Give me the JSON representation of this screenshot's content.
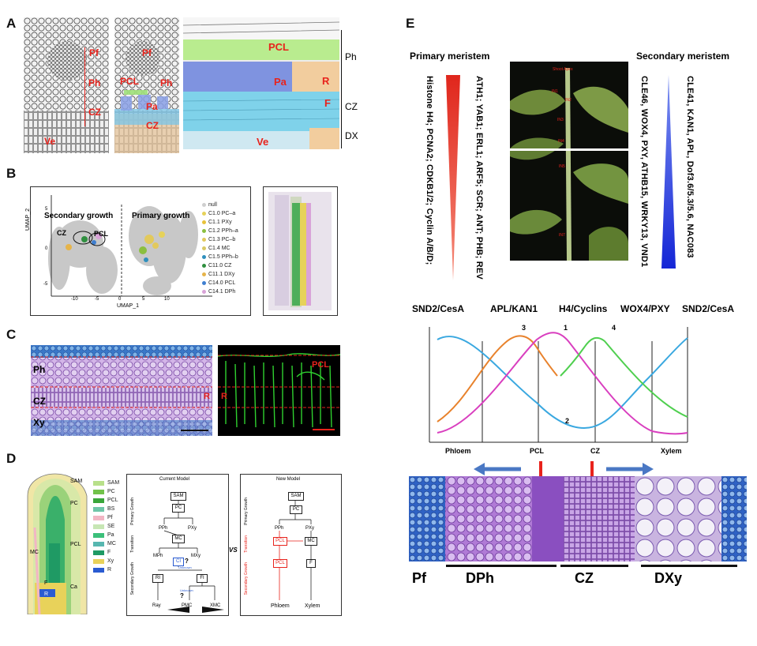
{
  "panels": {
    "A": {
      "letter": "A",
      "labels": {
        "pf": "Pf",
        "ph": "Ph",
        "cz": "CZ",
        "ve": "Ve",
        "pcl": "PCL",
        "pa": "Pa",
        "r": "R",
        "f": "F",
        "ph_side": "Ph",
        "cz_side": "CZ",
        "dx_side": "DX"
      }
    },
    "B": {
      "letter": "B",
      "secondary": "Secondary growth",
      "primary": "Primary growth",
      "cz": "CZ",
      "pcl": "PCL",
      "ylabel": "UMAP_2",
      "xlabel": "UMAP_1",
      "yticks": [
        "5",
        "0",
        "-5"
      ],
      "xticks": [
        "-10",
        "-5",
        "0",
        "5",
        "10"
      ],
      "legend": [
        {
          "name": "null",
          "color": "#cfcfcf"
        },
        {
          "name": "C1.0 PC–a",
          "color": "#e6d25a"
        },
        {
          "name": "C1.1 PXy",
          "color": "#e8c23a"
        },
        {
          "name": "C1.2 PPh–a",
          "color": "#8bbf3f"
        },
        {
          "name": "C1.3 PC–b",
          "color": "#e2c95d"
        },
        {
          "name": "C1.4 MC",
          "color": "#d9c864"
        },
        {
          "name": "C1.5 PPh–b",
          "color": "#2f8fbd"
        },
        {
          "name": "C11.0 CZ",
          "color": "#2f8f3f"
        },
        {
          "name": "C11.1 DXy",
          "color": "#e6b44a"
        },
        {
          "name": "C14.0 PCL",
          "color": "#3f7fd0"
        },
        {
          "name": "C14.1 DPh",
          "color": "#d9a3d8"
        }
      ]
    },
    "C": {
      "letter": "C",
      "ph": "Ph",
      "cz": "CZ",
      "xy": "Xy",
      "r": "R",
      "pcl": "PCL",
      "r2": "R"
    },
    "D": {
      "letter": "D",
      "sam": "SAM",
      "pc": "PC",
      "pcl": "PCL",
      "mc": "MC",
      "ca": "Ca",
      "f": "F",
      "r": "R",
      "legend": [
        {
          "name": "SAM",
          "color": "#b8e08a"
        },
        {
          "name": "PC",
          "color": "#72c24a"
        },
        {
          "name": "PCL",
          "color": "#3aa63a"
        },
        {
          "name": "BS",
          "color": "#6fc6a8"
        },
        {
          "name": "Pf",
          "color": "#f2b6c4"
        },
        {
          "name": "SE",
          "color": "#c7e6b4"
        },
        {
          "name": "Pa",
          "color": "#3cc07a"
        },
        {
          "name": "MC",
          "color": "#57b7b0"
        },
        {
          "name": "F",
          "color": "#1f9a64"
        },
        {
          "name": "Xy",
          "color": "#e8d25a"
        },
        {
          "name": "R",
          "color": "#2a5bd1"
        }
      ],
      "current": {
        "title": "Current Model",
        "sam": "SAM",
        "pc": "PC",
        "pph": "PPh",
        "pxy": "PXy",
        "mc": "MC",
        "mph": "MPh",
        "mxy": "MXy",
        "ci": "CI",
        "q1": "?",
        "unknown": "Unknown",
        "ri": "RI",
        "fi": "FI",
        "unknown2": "Unknown",
        "q2": "?",
        "ray": "Ray",
        "pmc": "PMC",
        "xmc": "XMC",
        "prim": "Primary Growth",
        "trans": "Transition",
        "sec": "Secondary Growth"
      },
      "vs": "VS",
      "new": {
        "title": "New Model",
        "sam": "SAM",
        "pc": "PC",
        "pph": "PPh",
        "pxy": "PXy",
        "pcl1": "PCL",
        "mc": "MC",
        "pcl2": "PCL",
        "f": "F",
        "phloem": "Phloem",
        "xylem": "Xylem",
        "prim": "Primary Growth",
        "trans": "Transition",
        "sec": "Secondary Growth"
      }
    },
    "E": {
      "letter": "E",
      "primary_meristem": "Primary meristem",
      "secondary_meristem": "Secondary meristem",
      "col1": "Histone H4; PCNA2; CDKB1/2; Cyclin A/B/D;",
      "col2": "ATH1; YAB1; ERL1; ARF5; SCR; ANT; PHB; REV",
      "col3": "CLE46, WOX4, PXY, ATHB15, WRKY13, VND1",
      "col4": "CLE41, KAN1, APL, Dof3.6/5.3/5.6, NAC083",
      "photo": {
        "apex": "Shoot Apex",
        "in1": "IN1",
        "in2": "IN2",
        "in3": "IN3",
        "in4": "IN4",
        "in5": "IN5",
        "in7": "IN7"
      },
      "curve_headers": [
        "SND2/CesA",
        "APL/KAN1",
        "H4/Cyclins",
        "WOX4/PXY",
        "SND2/CesA"
      ],
      "curve_nums": [
        "3",
        "1",
        "4",
        "2"
      ],
      "zones": [
        "Phloem",
        "PCL",
        "CZ",
        "Xylem"
      ],
      "bottom": [
        "Pf",
        "DPh",
        "CZ",
        "DXy"
      ]
    }
  }
}
